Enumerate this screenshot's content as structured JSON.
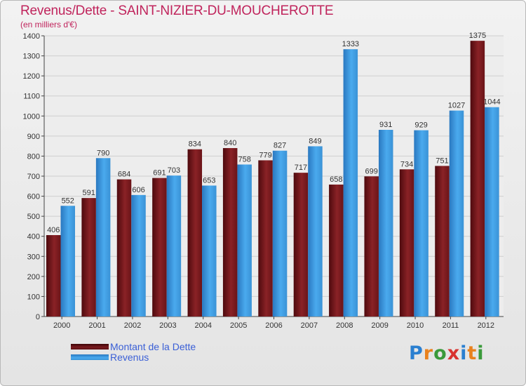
{
  "header": {
    "title": "Revenus/Dette - SAINT-NIZIER-DU-MOUCHEROTTE",
    "subtitle": "(en milliers d'€)"
  },
  "colors": {
    "title": "#c0245c",
    "debt": "#7a1a1e",
    "revenue": "#3a98dc",
    "legend_text": "#3a5fd6",
    "grid": "#cfcfcf"
  },
  "chart_data": {
    "type": "bar",
    "title": "Revenus/Dette - SAINT-NIZIER-DU-MOUCHEROTTE",
    "ylabel": "(en milliers d'€)",
    "xlabel": "",
    "categories": [
      "2000",
      "2001",
      "2002",
      "2003",
      "2004",
      "2005",
      "2006",
      "2007",
      "2008",
      "2009",
      "2010",
      "2011",
      "2012"
    ],
    "series": [
      {
        "name": "Montant de la Dette",
        "color": "#7a1a1e",
        "values": [
          406,
          591,
          684,
          691,
          834,
          840,
          779,
          717,
          658,
          699,
          734,
          751,
          1375
        ]
      },
      {
        "name": "Revenus",
        "color": "#3a98dc",
        "values": [
          552,
          790,
          606,
          703,
          653,
          758,
          827,
          849,
          1333,
          931,
          929,
          1027,
          1044
        ]
      }
    ],
    "ylim": [
      0,
      1400
    ],
    "yticks": [
      0,
      100,
      200,
      300,
      400,
      500,
      600,
      700,
      800,
      900,
      1000,
      1100,
      1200,
      1300,
      1400
    ],
    "grid": true,
    "legend_position": "bottom-left"
  },
  "logo": {
    "letters": [
      {
        "ch": "P",
        "color": "#2a7fd0"
      },
      {
        "ch": "r",
        "color": "#e9821e"
      },
      {
        "ch": "o",
        "color": "#3a9a3a"
      },
      {
        "ch": "x",
        "color": "#d8322f"
      },
      {
        "ch": "i",
        "color": "#2a7fd0"
      },
      {
        "ch": "t",
        "color": "#e9821e"
      },
      {
        "ch": "i",
        "color": "#3a9a3a"
      }
    ]
  }
}
